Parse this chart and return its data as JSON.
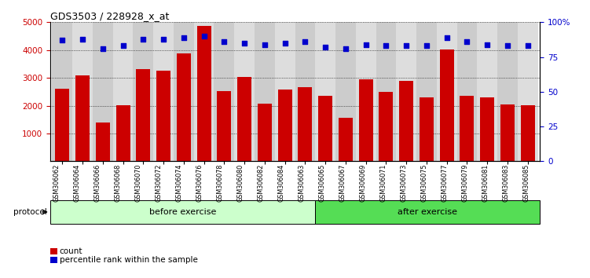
{
  "title": "GDS3503 / 228928_x_at",
  "categories": [
    "GSM306062",
    "GSM306064",
    "GSM306066",
    "GSM306068",
    "GSM306070",
    "GSM306072",
    "GSM306074",
    "GSM306076",
    "GSM306078",
    "GSM306080",
    "GSM306082",
    "GSM306084",
    "GSM306063",
    "GSM306065",
    "GSM306067",
    "GSM306069",
    "GSM306071",
    "GSM306073",
    "GSM306075",
    "GSM306077",
    "GSM306079",
    "GSM306081",
    "GSM306083",
    "GSM306085"
  ],
  "bar_values": [
    2600,
    3100,
    1380,
    2020,
    3320,
    3260,
    3880,
    4860,
    2530,
    3040,
    2060,
    2590,
    2670,
    2340,
    1560,
    2940,
    2490,
    2900,
    2310,
    4030,
    2340,
    2290,
    2040,
    2020
  ],
  "percentile_values": [
    87,
    88,
    81,
    83,
    88,
    88,
    89,
    90,
    86,
    85,
    84,
    85,
    86,
    82,
    81,
    84,
    83,
    83,
    83,
    89,
    86,
    84,
    83,
    83
  ],
  "bar_color": "#cc0000",
  "percentile_color": "#0000cc",
  "before_count": 13,
  "after_count": 11,
  "before_label": "before exercise",
  "after_label": "after exercise",
  "before_color": "#ccffcc",
  "after_color": "#55dd55",
  "protocol_label": "protocol",
  "legend_count_label": "count",
  "legend_pct_label": "percentile rank within the sample",
  "ylim_left": [
    0,
    5000
  ],
  "ylim_right": [
    0,
    100
  ],
  "yticks_left": [
    1000,
    2000,
    3000,
    4000,
    5000
  ],
  "yticks_right": [
    0,
    25,
    50,
    75,
    100
  ],
  "ytick_labels_right": [
    "0",
    "25",
    "50",
    "75",
    "100%"
  ]
}
